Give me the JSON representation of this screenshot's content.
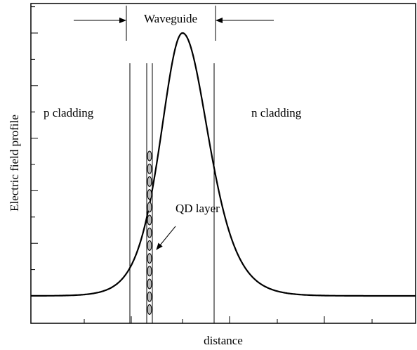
{
  "y_axis_label": "Electric field profile",
  "x_axis_label": "distance",
  "waveguide_label": "Waveguide",
  "p_cladding_label": "p cladding",
  "n_cladding_label": "n cladding",
  "qd_layer_label": "QD layer"
}
